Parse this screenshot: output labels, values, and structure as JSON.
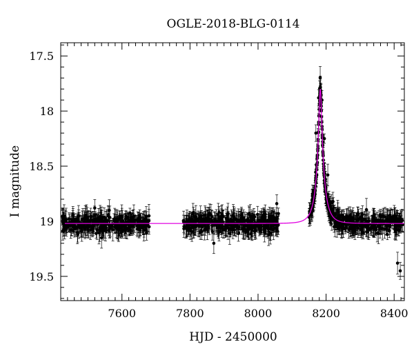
{
  "chart_data": {
    "type": "scatter",
    "title": "OGLE-2018-BLG-0114",
    "xlabel": "HJD - 2450000",
    "ylabel": "I magnitude",
    "xlim": [
      7420,
      8430
    ],
    "ylim": [
      19.72,
      17.38
    ],
    "y_inverted": true,
    "x_ticks": [
      7600,
      7800,
      8000,
      8200,
      8400
    ],
    "x_tick_labels": [
      "7600",
      "7800",
      "8000",
      "8200",
      "8400"
    ],
    "y_ticks": [
      17.5,
      18,
      18.5,
      19,
      19.5
    ],
    "y_tick_labels": [
      "17.5",
      "18",
      "18.5",
      "19",
      "19.5"
    ],
    "grid": false,
    "colors": {
      "points": "#000000",
      "model": "#e000e0"
    },
    "observing_seasons": [
      [
        7425,
        7680
      ],
      [
        7780,
        8060
      ],
      [
        8150,
        8425
      ]
    ],
    "baseline_mag": 19.02,
    "typical_error_mag": 0.07,
    "model": {
      "type": "microlensing_point_lens",
      "t0": 8183,
      "u0": 0.16,
      "tE": 26,
      "baseline_mag": 19.02,
      "peak_mag": 17.8
    },
    "sample_points": [
      {
        "x": 7430,
        "y": 18.95
      },
      {
        "x": 7452,
        "y": 19.08
      },
      {
        "x": 7470,
        "y": 19.12
      },
      {
        "x": 7485,
        "y": 18.98
      },
      {
        "x": 7500,
        "y": 19.05
      },
      {
        "x": 7520,
        "y": 18.88
      },
      {
        "x": 7540,
        "y": 19.15
      },
      {
        "x": 7560,
        "y": 18.94
      },
      {
        "x": 7580,
        "y": 19.02
      },
      {
        "x": 7600,
        "y": 18.96
      },
      {
        "x": 7620,
        "y": 19.06
      },
      {
        "x": 7640,
        "y": 18.99
      },
      {
        "x": 7660,
        "y": 19.04
      },
      {
        "x": 7790,
        "y": 19.03
      },
      {
        "x": 7810,
        "y": 18.92
      },
      {
        "x": 7830,
        "y": 19.1
      },
      {
        "x": 7850,
        "y": 18.97
      },
      {
        "x": 7870,
        "y": 19.2
      },
      {
        "x": 7890,
        "y": 19.01
      },
      {
        "x": 7910,
        "y": 18.94
      },
      {
        "x": 7930,
        "y": 19.08
      },
      {
        "x": 7950,
        "y": 18.99
      },
      {
        "x": 7970,
        "y": 19.05
      },
      {
        "x": 7990,
        "y": 18.96
      },
      {
        "x": 8010,
        "y": 19.02
      },
      {
        "x": 8030,
        "y": 19.07
      },
      {
        "x": 8055,
        "y": 18.84
      },
      {
        "x": 8160,
        "y": 18.75
      },
      {
        "x": 8170,
        "y": 18.2
      },
      {
        "x": 8178,
        "y": 17.88
      },
      {
        "x": 8183,
        "y": 17.79
      },
      {
        "x": 8188,
        "y": 17.9
      },
      {
        "x": 8195,
        "y": 18.25
      },
      {
        "x": 8205,
        "y": 18.58
      },
      {
        "x": 8220,
        "y": 18.82
      },
      {
        "x": 8240,
        "y": 18.95
      },
      {
        "x": 8260,
        "y": 19.0
      },
      {
        "x": 8280,
        "y": 19.08
      },
      {
        "x": 8300,
        "y": 18.98
      },
      {
        "x": 8320,
        "y": 19.1
      },
      {
        "x": 8340,
        "y": 18.95
      },
      {
        "x": 8360,
        "y": 19.05
      },
      {
        "x": 8380,
        "y": 19.12
      },
      {
        "x": 8400,
        "y": 19.0
      },
      {
        "x": 8410,
        "y": 19.38
      },
      {
        "x": 8418,
        "y": 19.45
      }
    ]
  }
}
